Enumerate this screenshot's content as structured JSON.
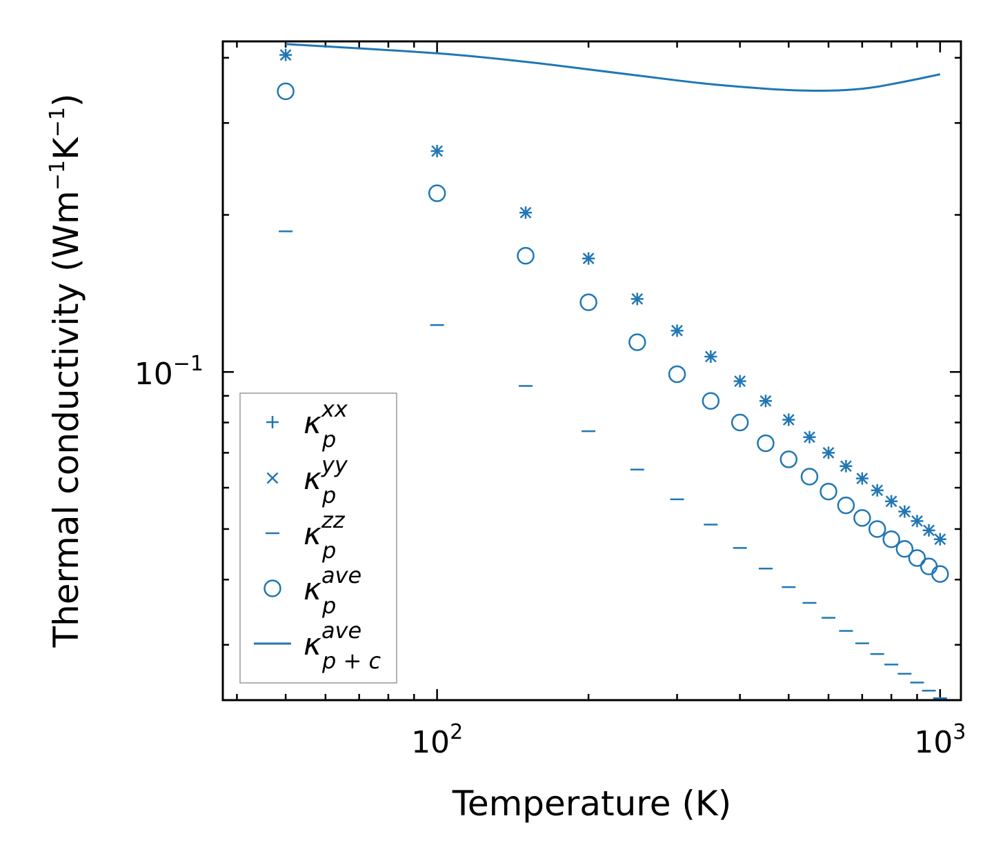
{
  "chart_data": {
    "type": "scatter",
    "xscale": "log",
    "yscale": "log",
    "xlabel": "Temperature (K)",
    "ylabel": "Thermal conductivity (Wm",
    "ylabel_unit_1": "−1",
    "ylabel_mid": "K",
    "ylabel_unit_2": "−1",
    "ylabel_end": ")",
    "xlim": [
      37.5,
      1100
    ],
    "ylim": [
      0.0235,
      0.43
    ],
    "x_ticks": [
      {
        "value": 100,
        "base": "10",
        "exp": "2"
      },
      {
        "value": 1000,
        "base": "10",
        "exp": "3"
      }
    ],
    "y_ticks": [
      {
        "value": 0.1,
        "base": "10",
        "exp": "−1"
      }
    ],
    "color": "#1f77b4",
    "x": [
      50,
      100,
      150,
      200,
      250,
      300,
      350,
      400,
      450,
      500,
      550,
      600,
      650,
      700,
      750,
      800,
      850,
      900,
      950,
      1000
    ],
    "series": [
      {
        "name": "kappa_p_xx",
        "label_base": "κ",
        "label_sub": "p",
        "label_sup": "xx",
        "marker": "plus",
        "values": [
          0.405,
          0.265,
          0.202,
          0.165,
          0.138,
          0.12,
          0.107,
          0.096,
          0.088,
          0.081,
          0.075,
          0.07,
          0.066,
          0.0625,
          0.0593,
          0.0565,
          0.054,
          0.0518,
          0.0497,
          0.0478
        ]
      },
      {
        "name": "kappa_p_yy",
        "label_base": "κ",
        "label_sub": "p",
        "label_sup": "yy",
        "marker": "x",
        "values": [
          0.405,
          0.265,
          0.202,
          0.165,
          0.138,
          0.12,
          0.107,
          0.096,
          0.088,
          0.081,
          0.075,
          0.07,
          0.066,
          0.0625,
          0.0593,
          0.0565,
          0.054,
          0.0518,
          0.0497,
          0.0478
        ]
      },
      {
        "name": "kappa_p_zz",
        "label_base": "κ",
        "label_sub": "p",
        "label_sup": "zz",
        "marker": "hline",
        "values": [
          0.186,
          0.123,
          0.094,
          0.077,
          0.065,
          0.057,
          0.051,
          0.046,
          0.042,
          0.0387,
          0.0361,
          0.0338,
          0.0319,
          0.0302,
          0.0288,
          0.0275,
          0.0264,
          0.0254,
          0.0245,
          0.0237
        ]
      },
      {
        "name": "kappa_p_ave",
        "label_base": "κ",
        "label_sub": "p",
        "label_sup": "ave",
        "marker": "circle",
        "values": [
          0.345,
          0.22,
          0.167,
          0.136,
          0.114,
          0.099,
          0.088,
          0.08,
          0.073,
          0.068,
          0.063,
          0.059,
          0.0555,
          0.0525,
          0.05,
          0.0478,
          0.0458,
          0.044,
          0.0424,
          0.041
        ]
      },
      {
        "name": "kappa_pc_ave",
        "label_base": "κ",
        "label_sub": "p + c",
        "label_sup": "ave",
        "marker": "line",
        "values": [
          0.425,
          0.408,
          0.393,
          0.38,
          0.37,
          0.362,
          0.356,
          0.352,
          0.349,
          0.347,
          0.346,
          0.346,
          0.347,
          0.349,
          0.352,
          0.356,
          0.36,
          0.364,
          0.368,
          0.372
        ]
      }
    ],
    "legend_position": "lower-left",
    "grid": false
  }
}
